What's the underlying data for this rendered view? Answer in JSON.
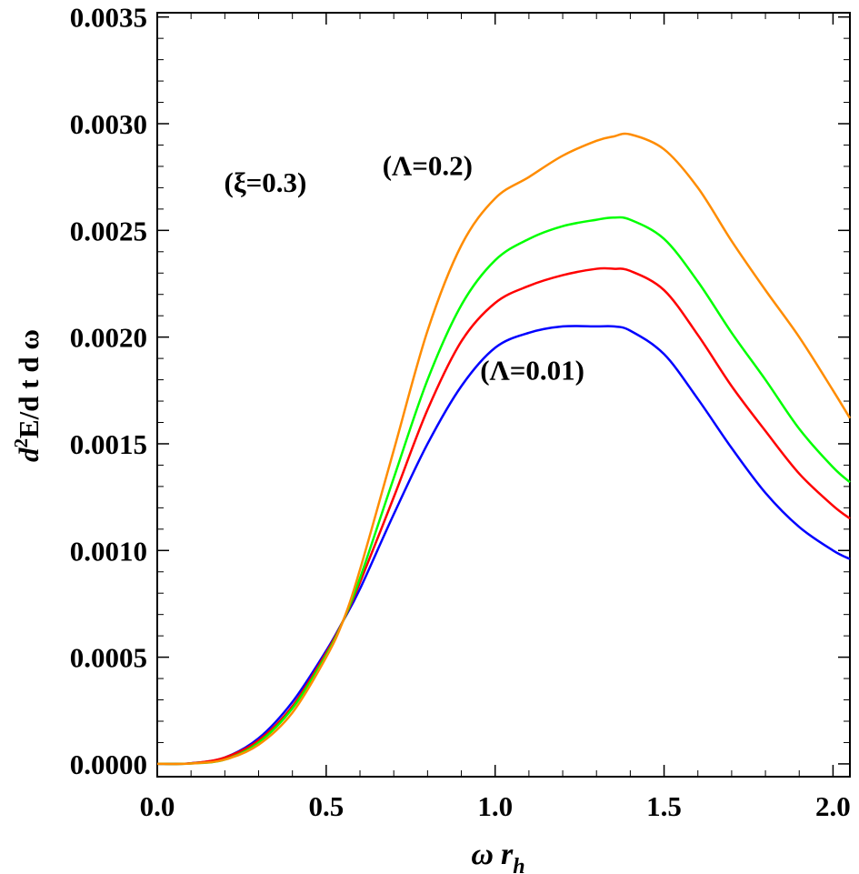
{
  "chart_data": {
    "type": "line",
    "xlabel": {
      "greek": "ω",
      "var": "r",
      "sub": "h"
    },
    "ylabel": {
      "d": "d",
      "sup": "2",
      "rest": "E/d t d ω"
    },
    "xlim": [
      0.0,
      2.05
    ],
    "ylim": [
      -6e-05,
      0.00352
    ],
    "x_ticks": [
      {
        "value": 0.0,
        "label": "0.0"
      },
      {
        "value": 0.5,
        "label": "0.5"
      },
      {
        "value": 1.0,
        "label": "1.0"
      },
      {
        "value": 1.5,
        "label": "1.5"
      },
      {
        "value": 2.0,
        "label": "2.0"
      }
    ],
    "y_ticks": [
      {
        "value": 0.0,
        "label": "0.0000"
      },
      {
        "value": 0.0005,
        "label": "0.0005"
      },
      {
        "value": 0.001,
        "label": "0.0010"
      },
      {
        "value": 0.0015,
        "label": "0.0015"
      },
      {
        "value": 0.002,
        "label": "0.0020"
      },
      {
        "value": 0.0025,
        "label": "0.0025"
      },
      {
        "value": 0.003,
        "label": "0.0030"
      },
      {
        "value": 0.0035,
        "label": "0.0035"
      }
    ],
    "grid": false,
    "x": [
      0.0,
      0.1,
      0.2,
      0.3,
      0.4,
      0.5,
      0.55,
      0.6,
      0.7,
      0.8,
      0.9,
      1.0,
      1.1,
      1.2,
      1.3,
      1.35,
      1.4,
      1.5,
      1.6,
      1.7,
      1.8,
      1.9,
      2.0,
      2.05
    ],
    "series": [
      {
        "color": "#0000ff",
        "values": [
          0.0,
          3e-06,
          3e-05,
          0.00012,
          0.00029,
          0.00053,
          0.00067,
          0.00082,
          0.00117,
          0.0015,
          0.00177,
          0.00195,
          0.00202,
          0.00205,
          0.00205,
          0.00205,
          0.00203,
          0.00192,
          0.00171,
          0.00148,
          0.00127,
          0.00111,
          0.001,
          0.00096
        ]
      },
      {
        "color": "#ff0000",
        "values": [
          0.0,
          3e-06,
          3e-05,
          0.00011,
          0.00027,
          0.00052,
          0.00067,
          0.00085,
          0.00125,
          0.00166,
          0.00198,
          0.00216,
          0.00224,
          0.00229,
          0.00232,
          0.00232,
          0.00231,
          0.00222,
          0.00201,
          0.00177,
          0.00156,
          0.00136,
          0.00121,
          0.00115
        ]
      },
      {
        "color": "#00ff00",
        "values": [
          0.0,
          2e-06,
          2e-05,
          0.0001,
          0.00026,
          0.00051,
          0.00067,
          0.00087,
          0.00134,
          0.0018,
          0.00215,
          0.00236,
          0.00246,
          0.00252,
          0.00255,
          0.00256,
          0.00255,
          0.00246,
          0.00226,
          0.00202,
          0.0018,
          0.00157,
          0.00139,
          0.00132
        ]
      },
      {
        "color": "#ff8c00",
        "values": [
          0.0,
          2e-06,
          2e-05,
          9e-05,
          0.00024,
          0.0005,
          0.00067,
          0.00091,
          0.00147,
          0.00203,
          0.00243,
          0.00265,
          0.00275,
          0.00285,
          0.00292,
          0.00294,
          0.00295,
          0.00288,
          0.0027,
          0.00245,
          0.00222,
          0.002,
          0.00175,
          0.00162
        ]
      }
    ],
    "annotations": [
      {
        "text": "(ξ=0.3)",
        "x": 0.32,
        "y": 0.00268
      },
      {
        "text": "(Λ=0.2)",
        "x": 0.8,
        "y": 0.00276
      },
      {
        "text": "(Λ=0.01)",
        "x": 1.11,
        "y": 0.0018
      }
    ]
  }
}
